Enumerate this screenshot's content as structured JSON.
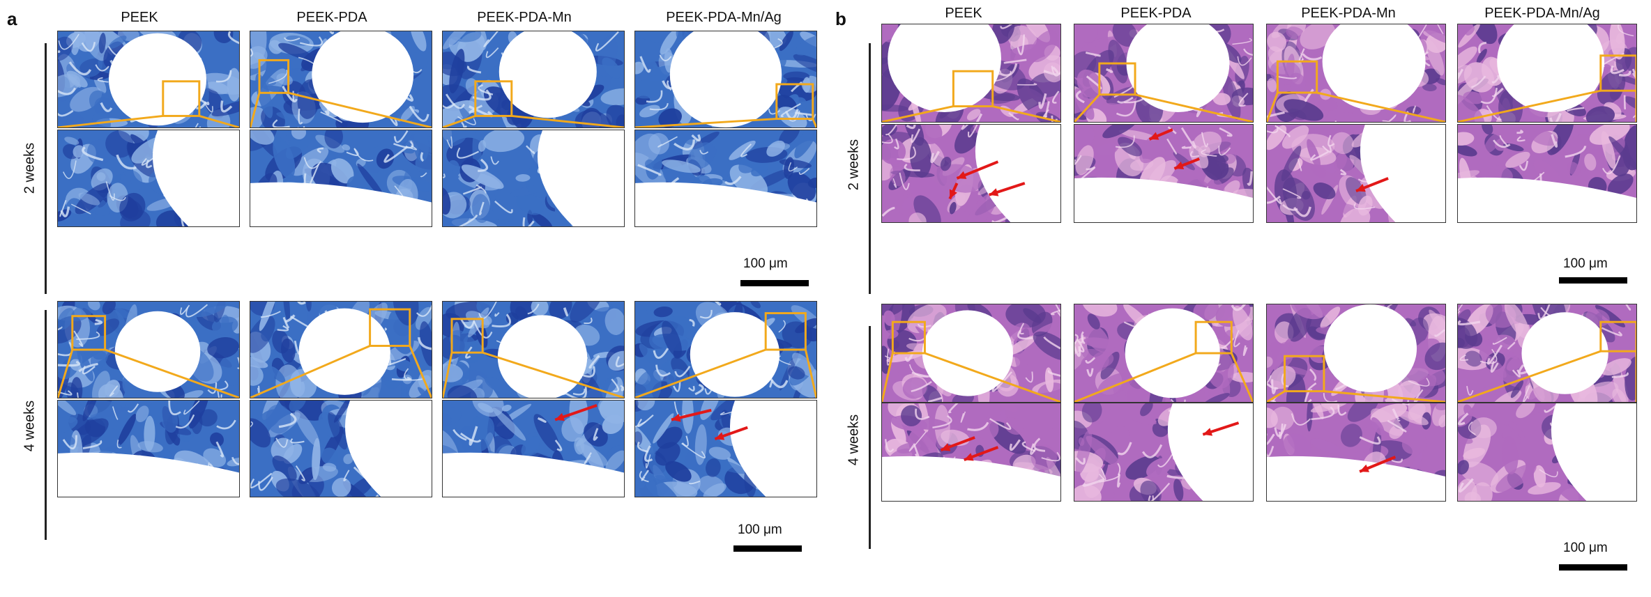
{
  "panel_a": {
    "letter": "a",
    "columns": [
      "PEEK",
      "PEEK-PDA",
      "PEEK-PDA-Mn",
      "PEEK-PDA-Mn/Ag"
    ],
    "rows": [
      "2 weeks",
      "4 weeks"
    ],
    "scale_label": "100 μm",
    "stain": "blue"
  },
  "panel_b": {
    "letter": "b",
    "columns": [
      "PEEK",
      "PEEK-PDA",
      "PEEK-PDA-Mn",
      "PEEK-PDA-Mn/Ag"
    ],
    "rows": [
      "2 weeks",
      "4 weeks"
    ],
    "scale_label": "100 μm",
    "stain": "purple"
  },
  "colors": {
    "zoom_box": "#f2a91c",
    "arrow": "#e21818",
    "blue_dark": "#1f3f9e",
    "blue_mid": "#3b6fc4",
    "blue_light": "#8fb3e6",
    "purple_dark": "#5b3b8f",
    "purple_mid": "#b06bbf",
    "pink_light": "#e8b8de"
  }
}
